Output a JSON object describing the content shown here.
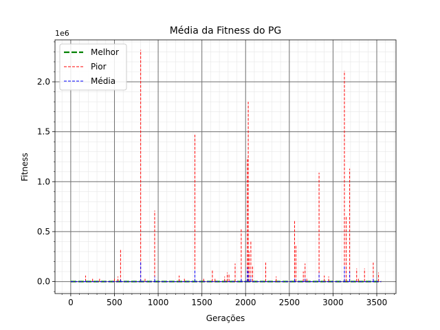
{
  "chart_data": {
    "type": "line",
    "title": "Média da Fitness do PG",
    "xlabel": "Gerações",
    "ylabel": "Fitness",
    "y_offset_text": "1e6",
    "xlim": [
      -180,
      3720
    ],
    "ylim": [
      -0.12,
      2.42
    ],
    "y_unit_multiplier": 1000000,
    "xticks": [
      0,
      500,
      1000,
      1500,
      2000,
      2500,
      3000,
      3500
    ],
    "xtick_labels": [
      "0",
      "500",
      "1000",
      "1500",
      "2000",
      "2500",
      "3000",
      "3500"
    ],
    "yticks": [
      0.0,
      0.5,
      1.0,
      1.5,
      2.0
    ],
    "ytick_labels": [
      "0.0",
      "0.5",
      "1.0",
      "1.5",
      "2.0"
    ],
    "grid": true,
    "legend_position": "top-left",
    "series": [
      {
        "name": "Melhor",
        "color": "#008000",
        "style": "dashed-thick",
        "x": [
          0,
          3550
        ],
        "y": [
          0,
          0
        ]
      },
      {
        "name": "Pior",
        "color": "#ff0000",
        "style": "dashed",
        "spikes": [
          [
            170,
            0.06
          ],
          [
            250,
            0.04
          ],
          [
            330,
            0.04
          ],
          [
            500,
            0.04
          ],
          [
            540,
            0.05
          ],
          [
            570,
            0.32
          ],
          [
            800,
            2.32
          ],
          [
            850,
            0.04
          ],
          [
            960,
            0.71
          ],
          [
            1240,
            0.06
          ],
          [
            1300,
            0.03
          ],
          [
            1420,
            1.47
          ],
          [
            1520,
            0.03
          ],
          [
            1620,
            0.12
          ],
          [
            1650,
            0.04
          ],
          [
            1760,
            0.05
          ],
          [
            1790,
            0.09
          ],
          [
            1810,
            0.08
          ],
          [
            1880,
            0.18
          ],
          [
            1950,
            0.53
          ],
          [
            2020,
            1.24
          ],
          [
            2030,
            1.8
          ],
          [
            2040,
            0.3
          ],
          [
            2060,
            0.41
          ],
          [
            2080,
            0.15
          ],
          [
            2230,
            0.19
          ],
          [
            2350,
            0.05
          ],
          [
            2560,
            0.61
          ],
          [
            2575,
            0.37
          ],
          [
            2660,
            0.1
          ],
          [
            2680,
            0.18
          ],
          [
            2700,
            0.04
          ],
          [
            2840,
            1.09
          ],
          [
            2900,
            0.06
          ],
          [
            2950,
            0.05
          ],
          [
            3130,
            2.11
          ],
          [
            3150,
            0.66
          ],
          [
            3190,
            1.13
          ],
          [
            3270,
            0.13
          ],
          [
            3290,
            0.04
          ],
          [
            3360,
            0.13
          ],
          [
            3460,
            0.19
          ],
          [
            3520,
            0.09
          ]
        ]
      },
      {
        "name": "Média",
        "color": "#0000ff",
        "style": "dashed",
        "spikes": [
          [
            170,
            0.01
          ],
          [
            570,
            0.02
          ],
          [
            800,
            0.2
          ],
          [
            960,
            0.05
          ],
          [
            1420,
            0.12
          ],
          [
            1950,
            0.03
          ],
          [
            2020,
            0.14
          ],
          [
            2030,
            0.1
          ],
          [
            2060,
            0.05
          ],
          [
            2560,
            0.04
          ],
          [
            2680,
            0.04
          ],
          [
            2840,
            0.09
          ],
          [
            3130,
            0.16
          ],
          [
            3190,
            0.1
          ],
          [
            3460,
            0.03
          ]
        ]
      }
    ]
  }
}
